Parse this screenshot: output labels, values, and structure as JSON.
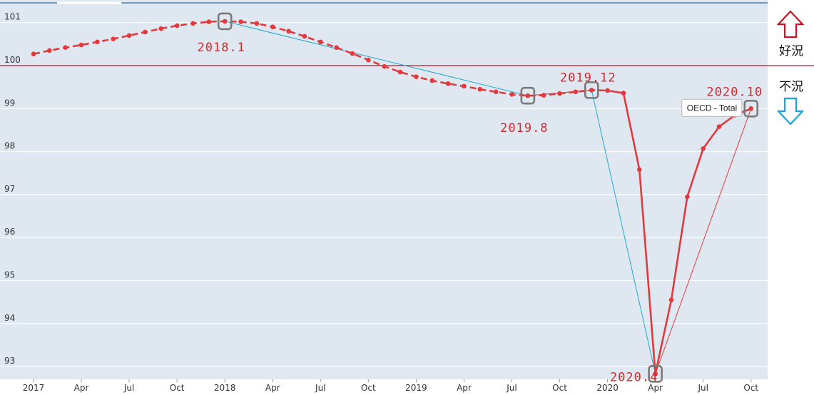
{
  "chart_data": {
    "type": "line",
    "ylim": [
      92.7,
      101.45
    ],
    "yticks": [
      93,
      94,
      95,
      96,
      97,
      98,
      99,
      100,
      101
    ],
    "baseline": 100,
    "xticks": [
      {
        "i": 0,
        "label": "2017"
      },
      {
        "i": 3,
        "label": "Apr"
      },
      {
        "i": 6,
        "label": "Jul"
      },
      {
        "i": 9,
        "label": "Oct"
      },
      {
        "i": 12,
        "label": "2018"
      },
      {
        "i": 15,
        "label": "Apr"
      },
      {
        "i": 18,
        "label": "Jul"
      },
      {
        "i": 21,
        "label": "Oct"
      },
      {
        "i": 24,
        "label": "2019"
      },
      {
        "i": 27,
        "label": "Apr"
      },
      {
        "i": 30,
        "label": "Jul"
      },
      {
        "i": 33,
        "label": "Oct"
      },
      {
        "i": 36,
        "label": "2020"
      },
      {
        "i": 39,
        "label": "Apr"
      },
      {
        "i": 42,
        "label": "Jul"
      },
      {
        "i": 45,
        "label": "Oct"
      }
    ],
    "series": [
      {
        "name": "OECD - Total",
        "color": "#e03a3e",
        "values": [
          100.27,
          100.35,
          100.42,
          100.48,
          100.55,
          100.62,
          100.7,
          100.78,
          100.86,
          100.93,
          100.98,
          101.02,
          101.03,
          101.02,
          100.98,
          100.9,
          100.8,
          100.68,
          100.55,
          100.42,
          100.28,
          100.13,
          99.98,
          99.85,
          99.74,
          99.65,
          99.58,
          99.52,
          99.45,
          99.39,
          99.33,
          99.3,
          99.31,
          99.35,
          99.39,
          99.43,
          99.42,
          99.36,
          97.58,
          92.83,
          94.55,
          96.95,
          98.07,
          98.58,
          98.85,
          99.0
        ]
      }
    ],
    "annotations": [
      {
        "label": "2018.1",
        "i": 12
      },
      {
        "label": "2019.8",
        "i": 31
      },
      {
        "label": "2019.12",
        "i": 35
      },
      {
        "label": "2020.4",
        "i": 39
      },
      {
        "label": "2020.10",
        "i": 45
      }
    ],
    "trend_lines": [
      {
        "color": "#22aacc",
        "points": [
          12,
          31,
          35,
          39
        ]
      },
      {
        "color": "#e03a3e",
        "points": [
          31,
          35
        ]
      },
      {
        "color": "#e03a3e",
        "points": [
          39,
          45
        ]
      }
    ],
    "tooltip": {
      "label": "OECD - Total",
      "i": 45
    },
    "colors": {
      "background": "#dfe8f1",
      "series": "#e03a3e",
      "accent_red": "#cc1122",
      "accent_blue": "#1aa3d9",
      "trend_blue": "#22aacc"
    }
  },
  "side": {
    "good_label": "好況",
    "bad_label": "不況",
    "up_arrow_icon": "up-arrow-icon",
    "down_arrow_icon": "down-arrow-icon"
  }
}
